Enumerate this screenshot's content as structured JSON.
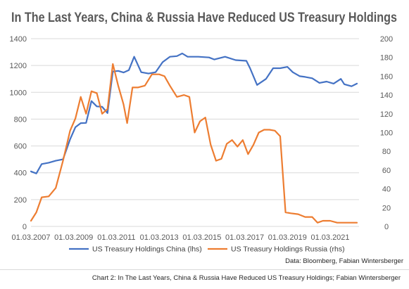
{
  "caption": "Chart 2: In The Last Years, China & Russia Have Reduced US Treasury Holdings; Fabian Wintersberger",
  "chart_data": {
    "type": "line",
    "title": "In The Last Years, China & Russia Have Reduced US Treasury Holdings",
    "source": "Data: Bloomberg, Fabian Wintersberger",
    "x_tick_labels": [
      "01.03.2007",
      "01.03.2009",
      "01.03.2011",
      "01.03.2013",
      "01.03.2015",
      "01.03.2017",
      "01.03.2019",
      "01.03.2021"
    ],
    "x_range": [
      2007.17,
      2021.92
    ],
    "y_left": {
      "ylim": [
        0,
        1400
      ],
      "ticks": [
        "0",
        "200",
        "400",
        "600",
        "800",
        "1000",
        "1200",
        "1400"
      ]
    },
    "y_right": {
      "ylim": [
        0,
        200
      ],
      "ticks": [
        "0",
        "20",
        "40",
        "60",
        "80",
        "100",
        "120",
        "140",
        "160",
        "180",
        "200"
      ]
    },
    "grid": true,
    "legend_position": "bottom",
    "series": [
      {
        "name": "US Treasury Holdings China (lhs)",
        "axis": "left",
        "color": "#4472C4",
        "points": [
          [
            2007.17,
            410
          ],
          [
            2007.42,
            395
          ],
          [
            2007.67,
            465
          ],
          [
            2008.0,
            475
          ],
          [
            2008.33,
            490
          ],
          [
            2008.67,
            500
          ],
          [
            2009.0,
            650
          ],
          [
            2009.25,
            740
          ],
          [
            2009.5,
            770
          ],
          [
            2009.75,
            772
          ],
          [
            2010.0,
            935
          ],
          [
            2010.25,
            895
          ],
          [
            2010.5,
            892
          ],
          [
            2010.75,
            845
          ],
          [
            2011.0,
            1155
          ],
          [
            2011.25,
            1160
          ],
          [
            2011.5,
            1148
          ],
          [
            2011.75,
            1165
          ],
          [
            2012.0,
            1265
          ],
          [
            2012.33,
            1150
          ],
          [
            2012.67,
            1140
          ],
          [
            2013.0,
            1150
          ],
          [
            2013.33,
            1225
          ],
          [
            2013.67,
            1265
          ],
          [
            2014.0,
            1270
          ],
          [
            2014.25,
            1290
          ],
          [
            2014.5,
            1265
          ],
          [
            2015.0,
            1265
          ],
          [
            2015.5,
            1260
          ],
          [
            2015.75,
            1245
          ],
          [
            2016.25,
            1265
          ],
          [
            2016.75,
            1240
          ],
          [
            2017.25,
            1235
          ],
          [
            2017.42,
            1180
          ],
          [
            2017.75,
            1055
          ],
          [
            2018.17,
            1100
          ],
          [
            2018.5,
            1180
          ],
          [
            2018.83,
            1180
          ],
          [
            2019.17,
            1190
          ],
          [
            2019.42,
            1150
          ],
          [
            2019.75,
            1120
          ],
          [
            2020.0,
            1115
          ],
          [
            2020.33,
            1105
          ],
          [
            2020.67,
            1070
          ],
          [
            2021.0,
            1080
          ],
          [
            2021.33,
            1065
          ],
          [
            2021.67,
            1100
          ],
          [
            2021.83,
            1060
          ],
          [
            2022.17,
            1045
          ],
          [
            2022.42,
            1065
          ]
        ]
      },
      {
        "name": "US Treasury Holdings Russia (rhs)",
        "axis": "right",
        "color": "#ED7D31",
        "points": [
          [
            2007.17,
            6
          ],
          [
            2007.42,
            15
          ],
          [
            2007.67,
            31
          ],
          [
            2008.0,
            32
          ],
          [
            2008.33,
            41
          ],
          [
            2008.67,
            70
          ],
          [
            2009.0,
            102
          ],
          [
            2009.25,
            115
          ],
          [
            2009.5,
            138
          ],
          [
            2009.75,
            120
          ],
          [
            2010.0,
            144
          ],
          [
            2010.25,
            142
          ],
          [
            2010.5,
            120
          ],
          [
            2010.75,
            125
          ],
          [
            2011.0,
            173
          ],
          [
            2011.25,
            150
          ],
          [
            2011.5,
            130
          ],
          [
            2011.67,
            110
          ],
          [
            2011.92,
            148
          ],
          [
            2012.17,
            148
          ],
          [
            2012.5,
            150
          ],
          [
            2012.83,
            162
          ],
          [
            2013.17,
            162
          ],
          [
            2013.42,
            160
          ],
          [
            2013.67,
            150
          ],
          [
            2014.0,
            138
          ],
          [
            2014.33,
            140
          ],
          [
            2014.58,
            138
          ],
          [
            2014.83,
            100
          ],
          [
            2015.08,
            112
          ],
          [
            2015.33,
            116
          ],
          [
            2015.58,
            87
          ],
          [
            2015.83,
            70
          ],
          [
            2016.08,
            72
          ],
          [
            2016.33,
            88
          ],
          [
            2016.58,
            92
          ],
          [
            2016.83,
            85
          ],
          [
            2017.08,
            92
          ],
          [
            2017.33,
            77
          ],
          [
            2017.58,
            87
          ],
          [
            2017.83,
            100
          ],
          [
            2018.08,
            103
          ],
          [
            2018.33,
            103
          ],
          [
            2018.58,
            102
          ],
          [
            2018.83,
            96
          ],
          [
            2019.08,
            15
          ],
          [
            2019.33,
            14
          ],
          [
            2019.67,
            13
          ],
          [
            2020.0,
            10
          ],
          [
            2020.33,
            10
          ],
          [
            2020.58,
            4
          ],
          [
            2020.83,
            6
          ],
          [
            2021.17,
            6
          ],
          [
            2021.5,
            4
          ],
          [
            2021.92,
            4
          ],
          [
            2022.42,
            4
          ]
        ]
      }
    ]
  }
}
